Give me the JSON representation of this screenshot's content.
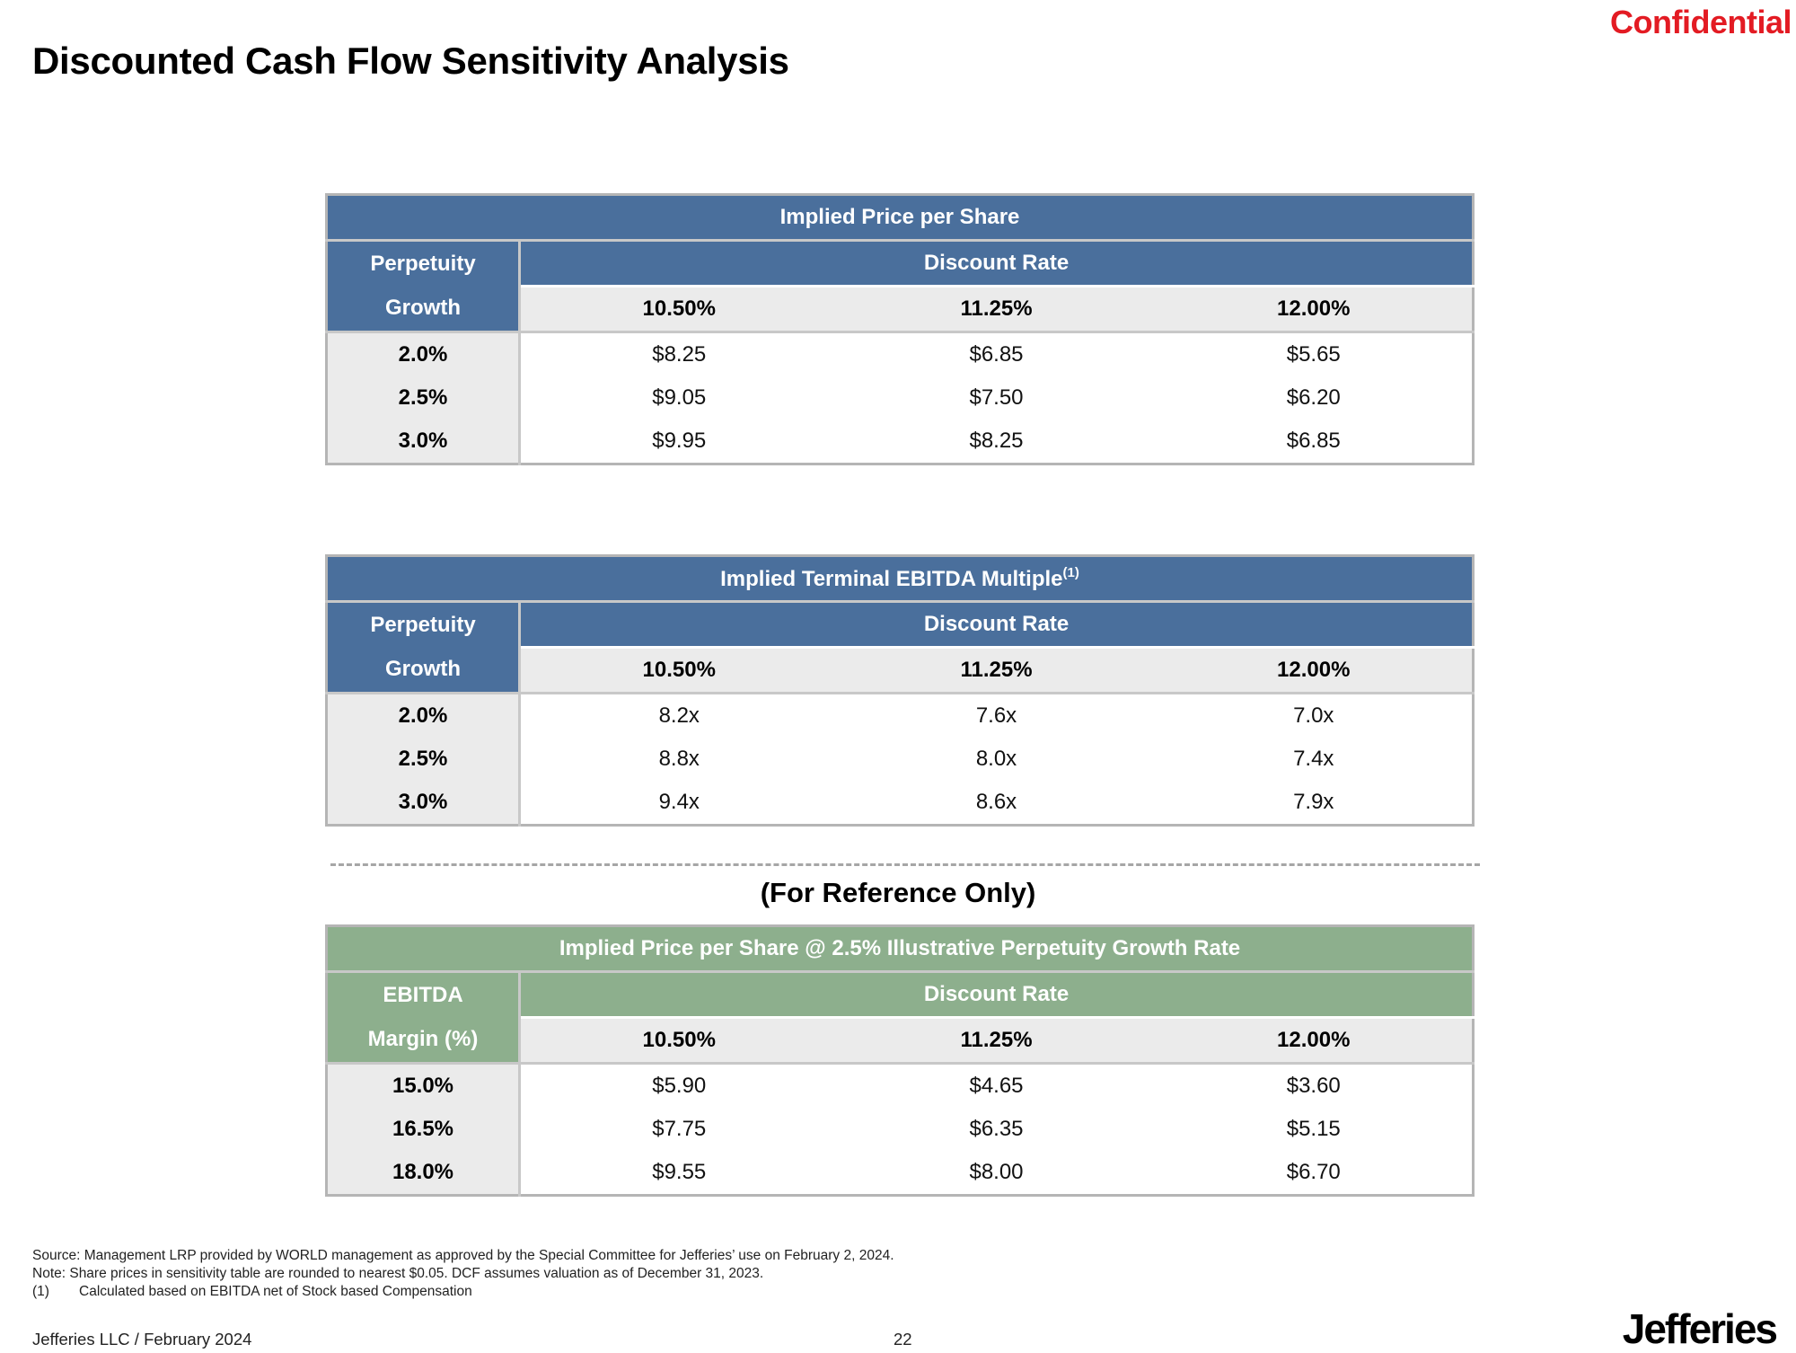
{
  "header": {
    "confidential": "Confidential",
    "title": "Discounted Cash Flow Sensitivity Analysis"
  },
  "tables": [
    {
      "title": "Implied Price per Share",
      "title_sup": "",
      "row_label_line1": "Perpetuity",
      "row_label_line2": "Growth",
      "discount_label": "Discount Rate",
      "rates": [
        "10.50%",
        "11.25%",
        "12.00%"
      ],
      "rows": [
        {
          "label": "2.0%",
          "values": [
            "$8.25",
            "$6.85",
            "$5.65"
          ]
        },
        {
          "label": "2.5%",
          "values": [
            "$9.05",
            "$7.50",
            "$6.20"
          ]
        },
        {
          "label": "3.0%",
          "values": [
            "$9.95",
            "$8.25",
            "$6.85"
          ]
        }
      ]
    },
    {
      "title": "Implied Terminal EBITDA Multiple",
      "title_sup": "(1)",
      "row_label_line1": "Perpetuity",
      "row_label_line2": "Growth",
      "discount_label": "Discount Rate",
      "rates": [
        "10.50%",
        "11.25%",
        "12.00%"
      ],
      "rows": [
        {
          "label": "2.0%",
          "values": [
            "8.2x",
            "7.6x",
            "7.0x"
          ]
        },
        {
          "label": "2.5%",
          "values": [
            "8.8x",
            "8.0x",
            "7.4x"
          ]
        },
        {
          "label": "3.0%",
          "values": [
            "9.4x",
            "8.6x",
            "7.9x"
          ]
        }
      ]
    },
    {
      "title": "Implied Price per Share @ 2.5% Illustrative Perpetuity Growth Rate",
      "title_sup": "",
      "row_label_line1": "EBITDA",
      "row_label_line2": "Margin (%)",
      "discount_label": "Discount Rate",
      "rates": [
        "10.50%",
        "11.25%",
        "12.00%"
      ],
      "rows": [
        {
          "label": "15.0%",
          "values": [
            "$5.90",
            "$4.65",
            "$3.60"
          ]
        },
        {
          "label": "16.5%",
          "values": [
            "$7.75",
            "$6.35",
            "$5.15"
          ]
        },
        {
          "label": "18.0%",
          "values": [
            "$9.55",
            "$8.00",
            "$6.70"
          ]
        }
      ]
    }
  ],
  "reference_title": "(For Reference Only)",
  "notes": {
    "source": "Source: Management LRP provided by WORLD management as approved by the Special Committee for Jefferies’ use on February 2, 2024.",
    "note": "Note: Share prices in sensitivity table are rounded to nearest $0.05. DCF assumes valuation as of December 31, 2023.",
    "footnote_num": "(1)",
    "footnote_text": "Calculated based on EBITDA net of Stock based Compensation"
  },
  "footer": {
    "left": "Jefferies LLC  /  February 2024",
    "page": "22",
    "logo": "Jefferies"
  },
  "colors": {
    "blue_header": "#4a6f9c",
    "green_header": "#8daf8d",
    "confidential_red": "#e31b23"
  }
}
